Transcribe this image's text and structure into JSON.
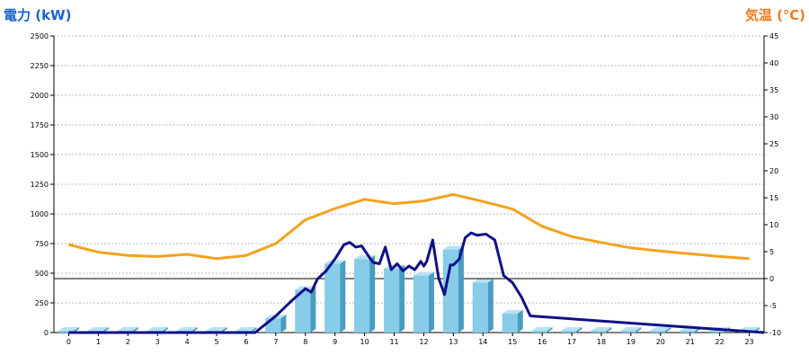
{
  "chart_data": {
    "type": "bar",
    "left_axis_title": "電力 (kW)",
    "right_axis_title": "気温 (℃)",
    "ylim": [
      0,
      2500
    ],
    "y2lim": [
      -10,
      45
    ],
    "yticks": [
      "0",
      "250",
      "500",
      "750",
      "1000",
      "1250",
      "1500",
      "1750",
      "2000",
      "2250",
      "2500"
    ],
    "y2ticks": [
      "-10",
      "-5",
      "0",
      "5",
      "10",
      "15",
      "20",
      "25",
      "30",
      "35",
      "40",
      "45"
    ],
    "categories": [
      "0",
      "1",
      "2",
      "3",
      "4",
      "5",
      "6",
      "7",
      "8",
      "9",
      "10",
      "11",
      "12",
      "13",
      "14",
      "15",
      "16",
      "17",
      "18",
      "19",
      "20",
      "21",
      "22",
      "23"
    ],
    "grid": true,
    "hourly_power_bars": {
      "color": "#87cce8",
      "values": [
        0,
        0,
        0,
        0,
        0,
        0,
        0,
        120,
        360,
        580,
        620,
        540,
        480,
        700,
        420,
        160,
        0,
        0,
        0,
        0,
        0,
        0,
        0,
        0
      ]
    },
    "temperature_line": {
      "color": "#f5a11e",
      "values": [
        6.3,
        4.9,
        4.3,
        4.1,
        4.5,
        3.7,
        4.3,
        6.5,
        10.9,
        13.0,
        14.7,
        13.9,
        14.4,
        15.6,
        14.3,
        12.9,
        9.7,
        7.8,
        6.7,
        5.7,
        5.1,
        4.6,
        4.1,
        3.7
      ]
    },
    "realtime_power_line": {
      "color": "#10108a",
      "x": [
        0,
        6.3,
        7,
        7.5,
        8,
        8.2,
        8.4,
        8.7,
        9,
        9.2,
        9.3,
        9.5,
        9.7,
        9.9,
        10.2,
        10.3,
        10.5,
        10.7,
        10.9,
        11.1,
        11.3,
        11.5,
        11.7,
        11.9,
        12,
        12.1,
        12.3,
        12.5,
        12.7,
        12.9,
        13,
        13.2,
        13.4,
        13.6,
        13.8,
        14.1,
        14.4,
        14.7,
        15,
        15.3,
        15.6,
        24
      ],
      "y": [
        0,
        0,
        140,
        260,
        370,
        340,
        450,
        520,
        620,
        700,
        740,
        760,
        720,
        730,
        620,
        590,
        580,
        720,
        530,
        580,
        520,
        560,
        530,
        600,
        560,
        600,
        780,
        460,
        320,
        570,
        570,
        620,
        800,
        840,
        820,
        830,
        780,
        480,
        420,
        300,
        140,
        0
      ]
    }
  }
}
